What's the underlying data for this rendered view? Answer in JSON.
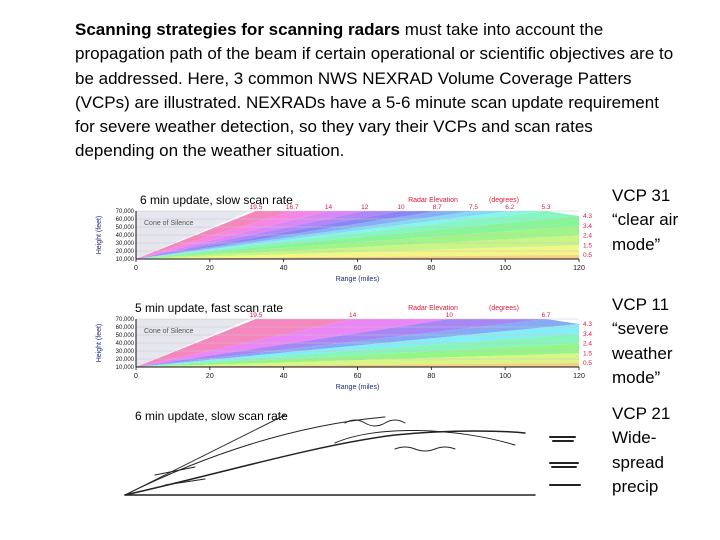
{
  "intro": {
    "bold": "Scanning strategies for scanning radars",
    "rest": " must take into account the propagation path of the beam if certain operational or scientific objectives are to be addressed.  Here, 3 common NWS NEXRAD Volume Coverage Patters (VCPs) are illustrated. NEXRADs have a 5-6 minute scan update requirement for severe weather detection, so they vary their VCPs and scan rates depending on the weather situation."
  },
  "chart_common": {
    "ylabel": "Height (feet)",
    "xlabel": "Range (miles)",
    "yticks": [
      "70,000",
      "60,000",
      "50,000",
      "40,000",
      "30,000",
      "20,000",
      "10,000"
    ],
    "xticks": [
      "0",
      "20",
      "40",
      "60",
      "80",
      "100",
      "120"
    ],
    "elev_title": "Radar Elevation",
    "elev_unit": "(degrees)",
    "cone_label": "Cone of Silence"
  },
  "panels": [
    {
      "caption": "6 min update, slow scan rate",
      "vcp_name": "VCP 31",
      "vcp_desc": [
        "“clear air",
        "mode”"
      ],
      "top_elevations": [
        "19.5",
        "16.7",
        "14",
        "12",
        "10",
        "8.7",
        "7.5",
        "6.2",
        "5.3"
      ],
      "right_elevations": [
        "4.3",
        "3.4",
        "2.4",
        "1.5",
        "0.5"
      ]
    },
    {
      "caption": "5 min update, fast scan rate",
      "vcp_name": "VCP 11",
      "vcp_desc": [
        "“severe",
        "weather",
        "mode”"
      ],
      "top_elevations": [
        "19.5",
        "14",
        "10",
        "6.7"
      ],
      "right_elevations": [
        "4.3",
        "3.4",
        "2.4",
        "1.5",
        "0.5"
      ]
    },
    {
      "caption": "6 min update, slow scan rate",
      "vcp_name": "VCP 21",
      "vcp_desc": [
        "Wide-",
        "spread",
        "precip"
      ]
    }
  ],
  "colors": {
    "elevation_label": "#e0183c",
    "axis_label": "#1a2a80",
    "cone_fill": "#e6e6ee"
  }
}
